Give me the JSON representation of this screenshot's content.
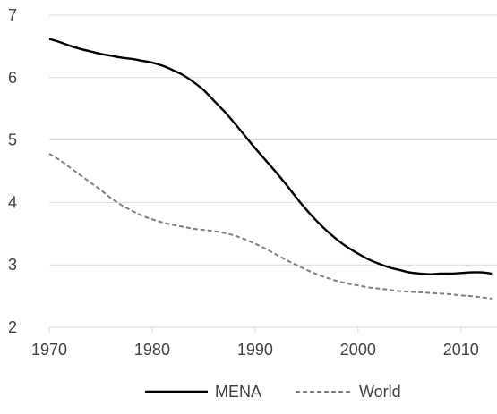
{
  "chart_data": {
    "type": "line",
    "x": [
      1970,
      1971,
      1972,
      1973,
      1974,
      1975,
      1976,
      1977,
      1978,
      1979,
      1980,
      1981,
      1982,
      1983,
      1984,
      1985,
      1986,
      1987,
      1988,
      1989,
      1990,
      1991,
      1992,
      1993,
      1994,
      1995,
      1996,
      1997,
      1998,
      1999,
      2000,
      2001,
      2002,
      2003,
      2004,
      2005,
      2006,
      2007,
      2008,
      2009,
      2010,
      2011,
      2012,
      2013
    ],
    "series": [
      {
        "name": "MENA",
        "color": "#000000",
        "dash": "solid",
        "values": [
          6.62,
          6.57,
          6.51,
          6.46,
          6.42,
          6.38,
          6.35,
          6.32,
          6.3,
          6.27,
          6.24,
          6.19,
          6.12,
          6.04,
          5.93,
          5.8,
          5.63,
          5.46,
          5.27,
          5.07,
          4.87,
          4.68,
          4.49,
          4.29,
          4.08,
          3.88,
          3.7,
          3.54,
          3.4,
          3.28,
          3.18,
          3.09,
          3.02,
          2.96,
          2.92,
          2.88,
          2.86,
          2.85,
          2.86,
          2.86,
          2.87,
          2.88,
          2.88,
          2.86
        ]
      },
      {
        "name": "World",
        "color": "#7f7f7f",
        "dash": "dashed",
        "values": [
          4.78,
          4.68,
          4.56,
          4.44,
          4.32,
          4.2,
          4.07,
          3.96,
          3.87,
          3.79,
          3.73,
          3.68,
          3.64,
          3.61,
          3.58,
          3.56,
          3.54,
          3.51,
          3.47,
          3.41,
          3.34,
          3.26,
          3.17,
          3.08,
          3.0,
          2.92,
          2.85,
          2.79,
          2.74,
          2.7,
          2.67,
          2.64,
          2.62,
          2.6,
          2.58,
          2.57,
          2.56,
          2.55,
          2.54,
          2.53,
          2.51,
          2.5,
          2.48,
          2.46
        ]
      }
    ],
    "xlim": [
      1970,
      2013.5
    ],
    "ylim": [
      2,
      7
    ],
    "xticks": [
      1970,
      1980,
      1990,
      2000,
      2010
    ],
    "yticks": [
      2,
      3,
      4,
      5,
      6,
      7
    ],
    "grid": "horizontal",
    "legend_position": "bottom"
  }
}
